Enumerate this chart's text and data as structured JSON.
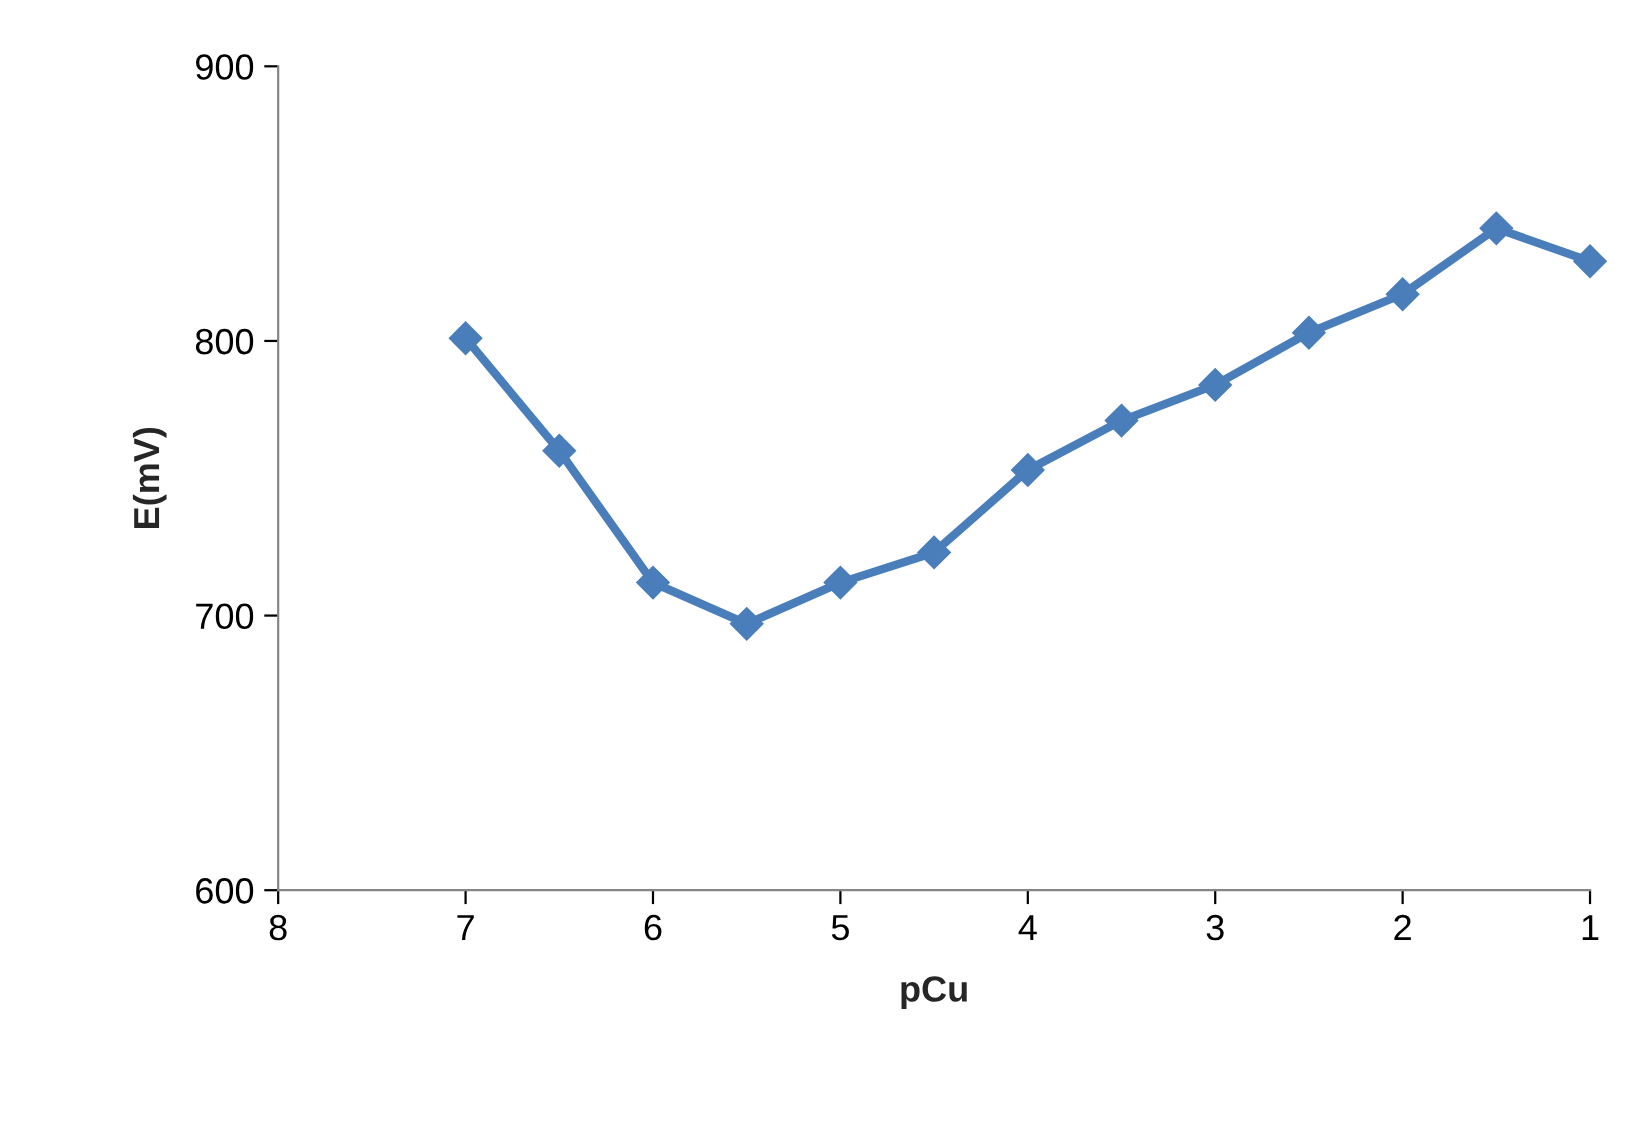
{
  "chart_data": {
    "type": "line",
    "xlabel": "pCu",
    "ylabel": "E(mV)",
    "x": [
      7,
      6.5,
      6,
      5.5,
      5,
      4.5,
      4,
      3.5,
      3,
      2.5,
      2,
      1.5,
      1
    ],
    "series": [
      {
        "color": "#4a7ebb",
        "values": [
          801,
          760,
          712,
          697,
          712,
          723,
          753,
          771,
          784,
          803,
          817,
          841,
          829
        ]
      }
    ],
    "xlim": [
      8,
      1
    ],
    "xticks": [
      8,
      7,
      6,
      5,
      4,
      3,
      2,
      1
    ],
    "ylim": [
      600,
      900
    ],
    "yticks": [
      600,
      700,
      800,
      900
    ],
    "grid": false,
    "marker": "diamond",
    "line_style": "solid"
  }
}
